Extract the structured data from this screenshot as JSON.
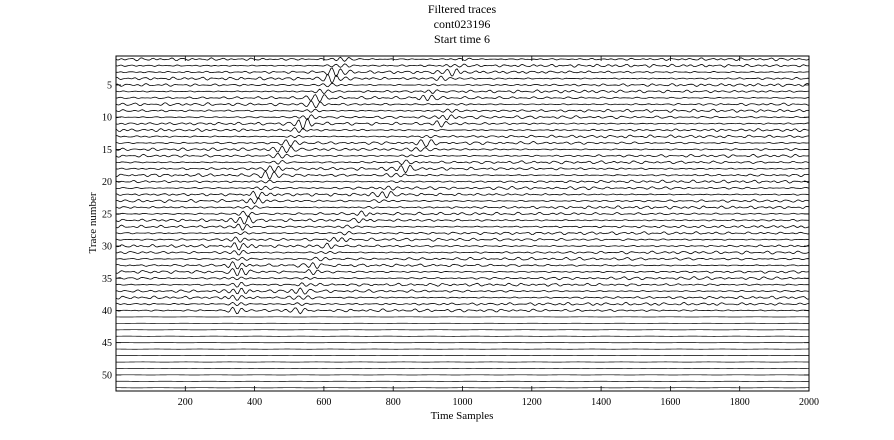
{
  "chart_data": {
    "type": "line",
    "title": [
      "Filtered traces",
      "cont023196",
      "Start time 6"
    ],
    "xlabel": "Time Samples",
    "ylabel": "Trace number",
    "xlim": [
      0,
      2000
    ],
    "ylim": [
      52.5,
      0.5
    ],
    "x_ticks": [
      200,
      400,
      600,
      800,
      1000,
      1200,
      1400,
      1600,
      1800,
      2000
    ],
    "y_ticks": [
      5,
      10,
      15,
      20,
      25,
      30,
      35,
      40,
      45,
      50
    ],
    "trace_count": 52,
    "active_traces": 40,
    "series": [
      {
        "first_arrival_samples": [
          640,
          628,
          616,
          604,
          592,
          580,
          568,
          556,
          544,
          532,
          520,
          508,
          496,
          484,
          472,
          460,
          448,
          436,
          424,
          412,
          400,
          390,
          380,
          370,
          360,
          350,
          345,
          340,
          338,
          336,
          334,
          332,
          330,
          330,
          330,
          330,
          330,
          330,
          330,
          330
        ]
      },
      {
        "second_arrival_samples": [
          985,
          970,
          950,
          930,
          910,
          895,
          880,
          965,
          950,
          935,
          920,
          905,
          890,
          875,
          860,
          845,
          830,
          815,
          800,
          790,
          780,
          760,
          740,
          720,
          700,
          680,
          660,
          640,
          620,
          600,
          585,
          570,
          560,
          550,
          540,
          530,
          525,
          520,
          515,
          510
        ]
      }
    ],
    "grid": false,
    "legend": "none"
  }
}
